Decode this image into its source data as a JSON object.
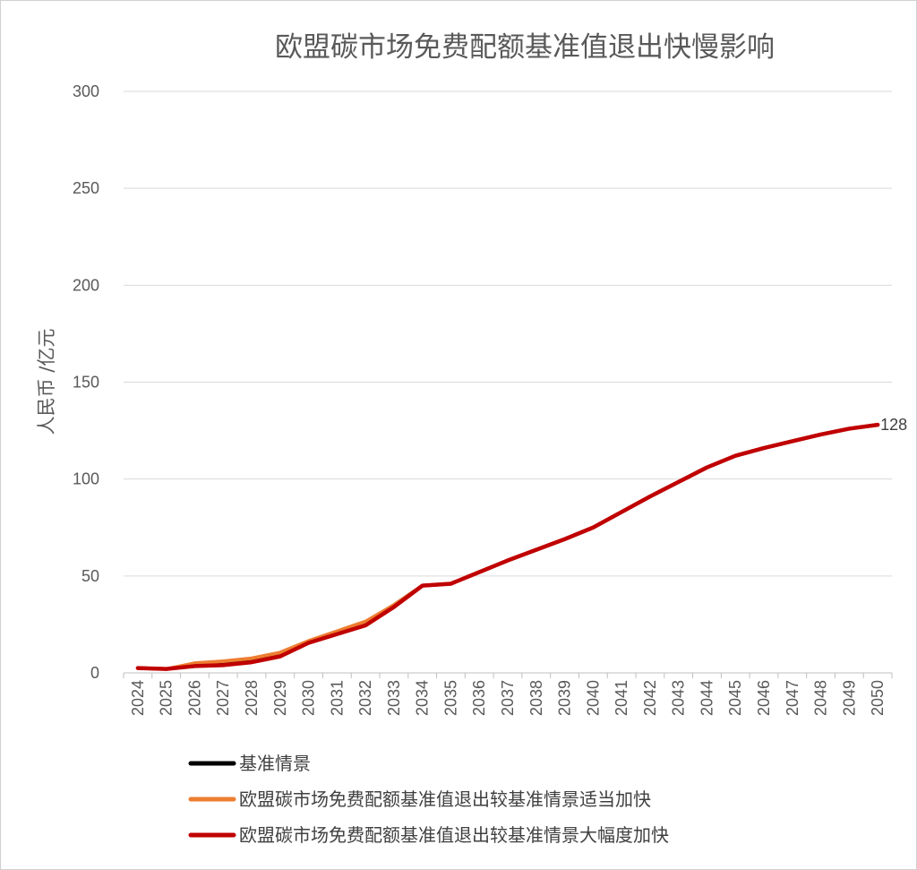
{
  "chart_data": {
    "type": "line",
    "title": "欧盟碳市场免费配额基准值退出快慢影响",
    "xlabel": "",
    "ylabel": "人民币 /亿元",
    "ylim": [
      0,
      300
    ],
    "yticks": [
      0,
      50,
      100,
      150,
      200,
      250,
      300
    ],
    "grid": true,
    "legend_position": "bottom",
    "x": [
      "2024",
      "2025",
      "2026",
      "2027",
      "2028",
      "2029",
      "2030",
      "2031",
      "2032",
      "2033",
      "2034",
      "2035",
      "2036",
      "2037",
      "2038",
      "2039",
      "2040",
      "2041",
      "2042",
      "2043",
      "2044",
      "2045",
      "2046",
      "2047",
      "2048",
      "2049",
      "2050"
    ],
    "series": [
      {
        "name": "基准情景",
        "color": "#000000",
        "values": [
          2.5,
          2,
          4.5,
          5.5,
          7,
          10,
          16,
          21,
          26,
          35,
          45,
          46,
          52,
          58,
          63.5,
          69,
          75,
          83,
          91,
          98.5,
          106,
          112,
          116,
          119.5,
          123,
          126,
          128
        ]
      },
      {
        "name": "欧盟碳市场免费配额基准值退出较基准情景适当加快",
        "color": "#ED7D31",
        "values": [
          2.5,
          2,
          5,
          6,
          7.5,
          10.5,
          16.5,
          21.5,
          26.5,
          35,
          45,
          46,
          52,
          58,
          63.5,
          69,
          75,
          83,
          91,
          98.5,
          106,
          112,
          116,
          119.5,
          123,
          126,
          128
        ]
      },
      {
        "name": "欧盟碳市场免费配额基准值退出较基准情景大幅度加快",
        "color": "#C00000",
        "values": [
          2.5,
          2,
          3.5,
          4,
          5.5,
          8.5,
          15.5,
          20,
          24.5,
          34,
          45,
          46,
          52,
          58,
          63.5,
          69,
          75,
          83,
          91,
          98.5,
          106,
          112,
          116,
          119.5,
          123,
          126,
          128
        ]
      }
    ],
    "annotations": [
      {
        "series_index": 2,
        "point_index": 26,
        "text": "128"
      }
    ]
  }
}
